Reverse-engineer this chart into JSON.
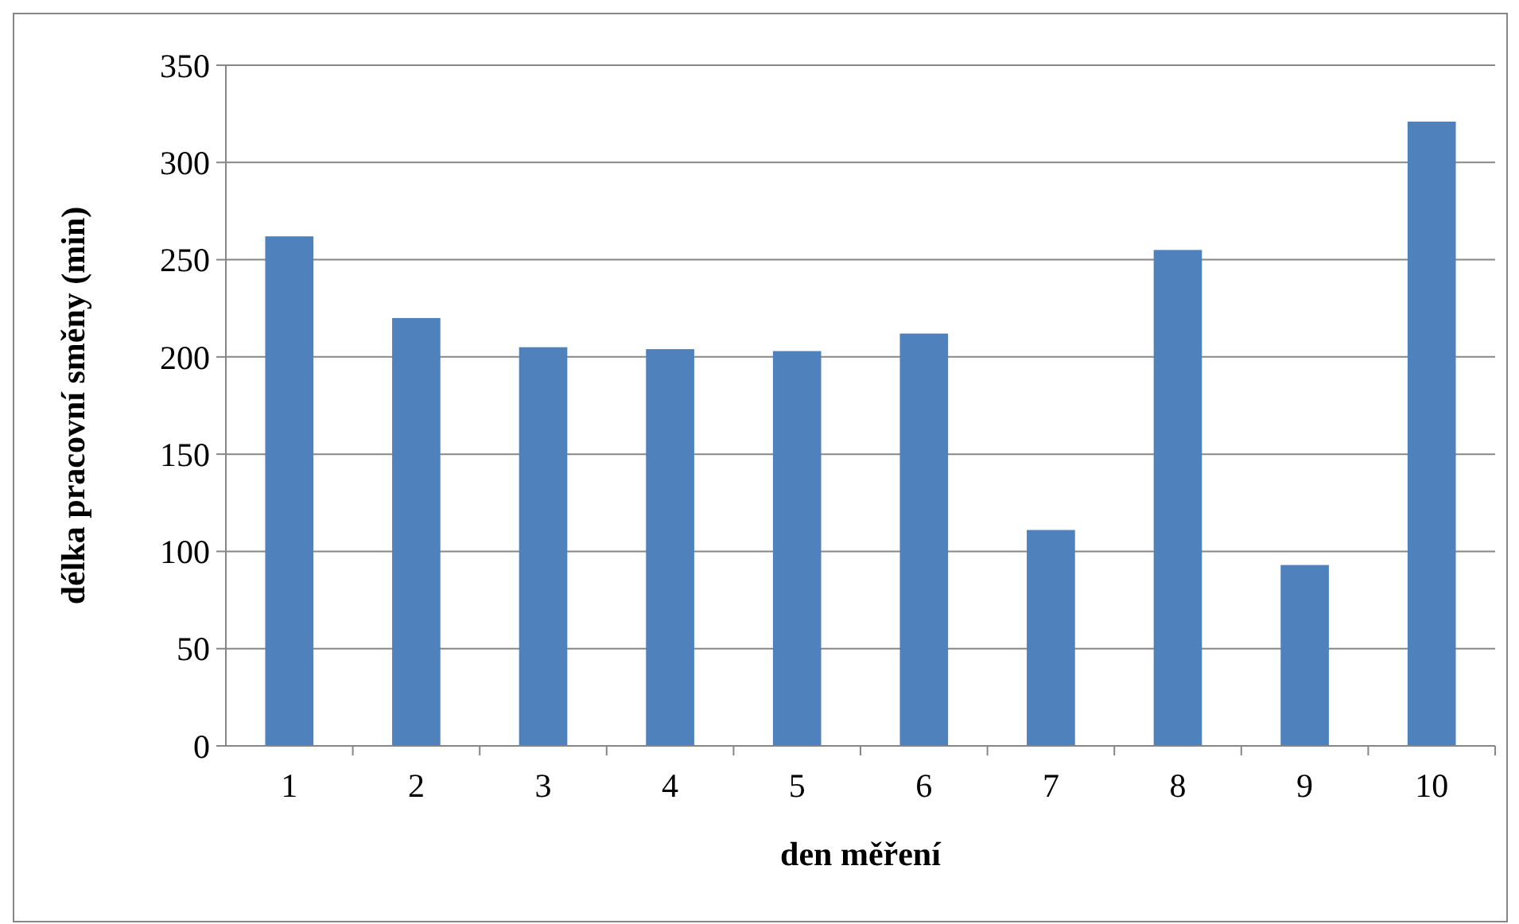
{
  "chart_data": {
    "type": "bar",
    "xlabel": "den měření",
    "ylabel": "délka pracovní směny (min)",
    "categories": [
      "1",
      "2",
      "3",
      "4",
      "5",
      "6",
      "7",
      "8",
      "9",
      "10"
    ],
    "values": [
      262,
      220,
      205,
      204,
      203,
      212,
      111,
      255,
      93,
      321
    ],
    "color": "#4f81bd",
    "ylim": [
      0,
      350
    ],
    "yticks": [
      0,
      50,
      100,
      150,
      200,
      250,
      300,
      350
    ],
    "grid": "y"
  }
}
